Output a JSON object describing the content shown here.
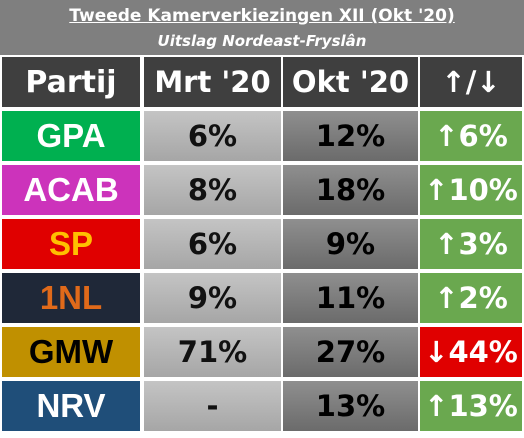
{
  "header": {
    "title": "Tweede Kamerverkiezingen XII (Okt '20)",
    "subtitle": "Uitslag Nordeast-Fryslân"
  },
  "columns": {
    "party": "Partij",
    "before": "Mrt '20",
    "after": "Okt '20",
    "change": "↑/↓"
  },
  "rows": [
    {
      "party": "GPA",
      "before": "6%",
      "after": "12%",
      "change": "↑6%",
      "party_bg": "#00b050",
      "party_fg": "#ffffff",
      "change_bg": "#6aa84f"
    },
    {
      "party": "ACAB",
      "before": "8%",
      "after": "18%",
      "change": "↑10%",
      "party_bg": "#cc33bb",
      "party_fg": "#ffffff",
      "change_bg": "#6aa84f"
    },
    {
      "party": "SP",
      "before": "6%",
      "after": "9%",
      "change": "↑3%",
      "party_bg": "#e00000",
      "party_fg": "#ffc000",
      "change_bg": "#6aa84f"
    },
    {
      "party": "1NL",
      "before": "9%",
      "after": "11%",
      "change": "↑2%",
      "party_bg": "#1f2838",
      "party_fg": "#e06a1a",
      "change_bg": "#6aa84f"
    },
    {
      "party": "GMW",
      "before": "71%",
      "after": "27%",
      "change": "↓44%",
      "party_bg": "#c09000",
      "party_fg": "#000000",
      "change_bg": "#e00000"
    },
    {
      "party": "NRV",
      "before": "-",
      "after": "13%",
      "change": "↑13%",
      "party_bg": "#1f4e79",
      "party_fg": "#ffffff",
      "change_bg": "#6aa84f"
    }
  ]
}
